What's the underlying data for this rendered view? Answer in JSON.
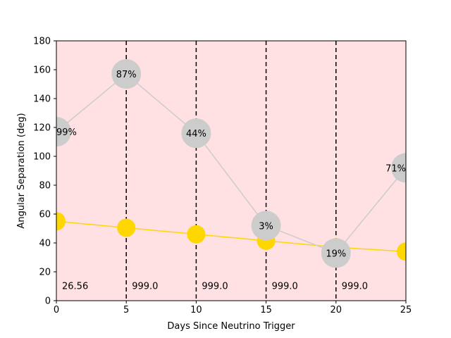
{
  "chart_data": {
    "type": "scatter",
    "title": "",
    "xlabel": "Days Since Neutrino Trigger",
    "ylabel": "Angular Separation (deg)",
    "xlim": [
      0,
      25
    ],
    "ylim": [
      0,
      180
    ],
    "xticks": [
      0,
      5,
      10,
      15,
      20,
      25
    ],
    "yticks": [
      0,
      20,
      40,
      60,
      80,
      100,
      120,
      140,
      160,
      180
    ],
    "background_color": "#ffe0e3",
    "grid": false,
    "legend": "none",
    "series": [
      {
        "color": "#ffd700",
        "x": [
          0,
          5,
          10,
          15,
          20,
          25
        ],
        "y": [
          55,
          50.5,
          46,
          41.5,
          37,
          34
        ]
      },
      {
        "color": "#cccccc",
        "x": [
          0,
          5,
          10,
          15,
          20,
          25
        ],
        "y": [
          117,
          157,
          116,
          52,
          33,
          92
        ],
        "point_labels": [
          "99%",
          "87%",
          "44%",
          "3%",
          "19%",
          "71%"
        ]
      }
    ],
    "vlines": [
      5,
      10,
      15,
      20
    ],
    "annotations": [
      {
        "x": 0,
        "y": 10,
        "text": "26.56"
      },
      {
        "x": 5,
        "y": 10,
        "text": "999.0"
      },
      {
        "x": 10,
        "y": 10,
        "text": "999.0"
      },
      {
        "x": 15,
        "y": 10,
        "text": "999.0"
      },
      {
        "x": 20,
        "y": 10,
        "text": "999.0"
      }
    ]
  }
}
